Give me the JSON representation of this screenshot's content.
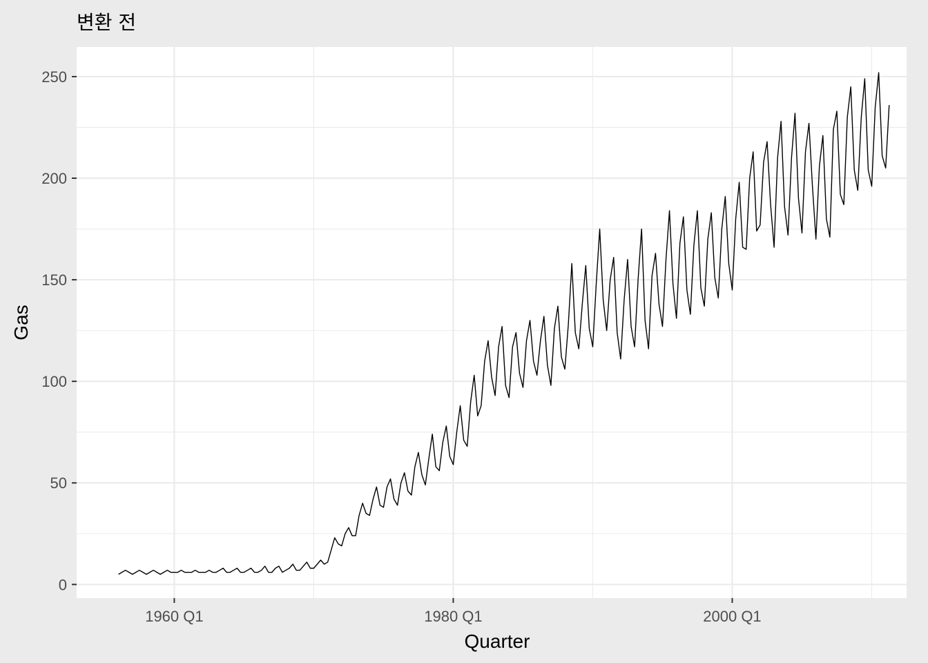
{
  "chart_data": {
    "type": "line",
    "title": "변환 전",
    "xlabel": "Quarter",
    "ylabel": "Gas",
    "x_ticks": [
      {
        "label": "1960 Q1",
        "value": 1960.0
      },
      {
        "label": "1980 Q1",
        "value": 1980.0
      },
      {
        "label": "2000 Q1",
        "value": 2000.0
      }
    ],
    "y_ticks": [
      0,
      50,
      100,
      150,
      200,
      250
    ],
    "xlim": [
      1953.0,
      2012.5
    ],
    "ylim": [
      -6.7,
      264.6
    ],
    "grid": true,
    "legend": "none",
    "colors": {
      "panel_background": "#ebebeb",
      "plot_background": "#ffffff",
      "gridline": "#ebebeb",
      "series_line": "#000000"
    },
    "series": [
      {
        "x_start": 1956.0,
        "step": 0.25,
        "values": [
          5,
          6,
          7,
          6,
          5,
          6,
          7,
          6,
          5,
          6,
          7,
          6,
          5,
          6,
          7,
          6,
          6,
          6,
          7,
          6,
          6,
          6,
          7,
          6,
          6,
          6,
          7,
          6,
          6,
          7,
          8,
          6,
          6,
          7,
          8,
          6,
          6,
          7,
          8,
          6,
          6,
          7,
          9,
          6,
          6,
          8,
          9,
          6,
          7,
          8,
          10,
          7,
          7,
          9,
          11,
          8,
          8,
          10,
          12,
          10,
          11,
          17,
          23,
          20,
          19,
          25,
          28,
          24,
          24,
          34,
          40,
          35,
          34,
          42,
          48,
          39,
          38,
          48,
          52,
          42,
          39,
          50,
          55,
          46,
          44,
          58,
          65,
          54,
          49,
          62,
          74,
          58,
          56,
          70,
          78,
          63,
          59,
          75,
          88,
          71,
          68,
          90,
          103,
          83,
          88,
          110,
          120,
          102,
          93,
          117,
          127,
          98,
          92,
          117,
          124,
          104,
          97,
          120,
          130,
          110,
          103,
          120,
          132,
          108,
          98,
          126,
          137,
          112,
          106,
          128,
          158,
          124,
          116,
          138,
          157,
          126,
          117,
          148,
          175,
          140,
          125,
          150,
          161,
          124,
          111,
          140,
          160,
          127,
          117,
          150,
          175,
          130,
          116,
          152,
          163,
          138,
          127,
          160,
          184,
          148,
          131,
          168,
          181,
          145,
          133,
          167,
          184,
          146,
          137,
          170,
          183,
          151,
          141,
          175,
          191,
          158,
          145,
          180,
          198,
          166,
          165,
          200,
          213,
          174,
          177,
          208,
          218,
          187,
          166,
          210,
          228,
          186,
          172,
          210,
          232,
          190,
          173,
          213,
          227,
          196,
          170,
          206,
          221,
          180,
          171,
          224,
          233,
          192,
          187,
          230,
          245,
          204,
          194,
          230,
          249,
          204,
          196,
          235,
          252,
          211,
          205,
          236
        ]
      }
    ]
  }
}
